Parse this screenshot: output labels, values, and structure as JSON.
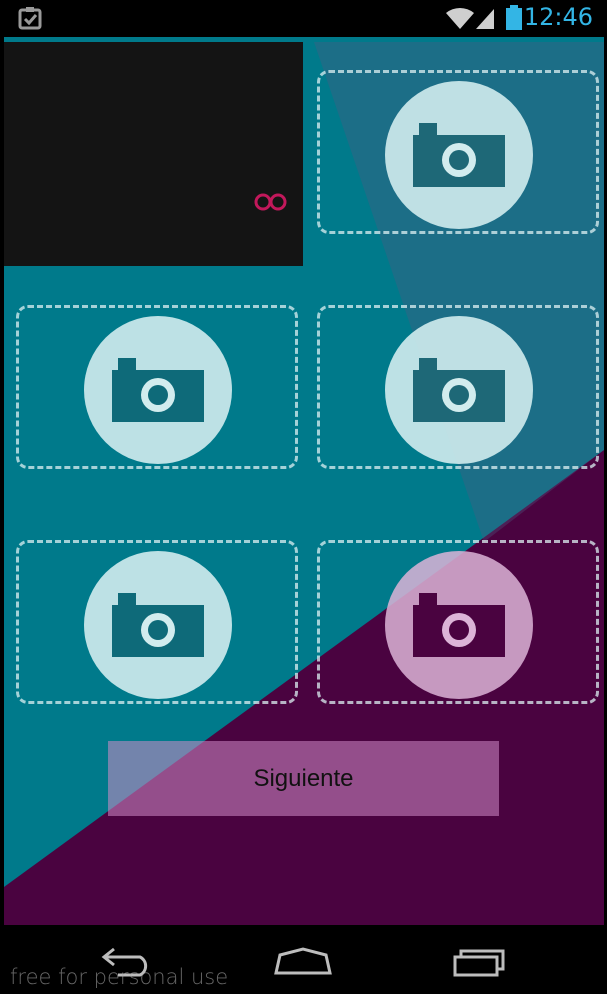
{
  "status_bar": {
    "time": "12:46",
    "icons": [
      "clipboard-check-icon",
      "wifi-icon",
      "signal-icon",
      "battery-icon"
    ],
    "accent_color": "#33b5e5"
  },
  "content": {
    "background_teal": "#007a8b",
    "background_purple": "#4a0340",
    "preview_icon": "infinity-icon",
    "photo_slots": [
      {
        "icon": "camera-icon"
      },
      {
        "icon": "camera-icon"
      },
      {
        "icon": "camera-icon"
      },
      {
        "icon": "camera-icon"
      },
      {
        "icon": "camera-icon"
      }
    ],
    "next_button_label": "Siguiente"
  },
  "nav_bar": {
    "icons": [
      "back-icon",
      "home-icon",
      "recents-icon"
    ],
    "watermark": "free for personal use"
  }
}
